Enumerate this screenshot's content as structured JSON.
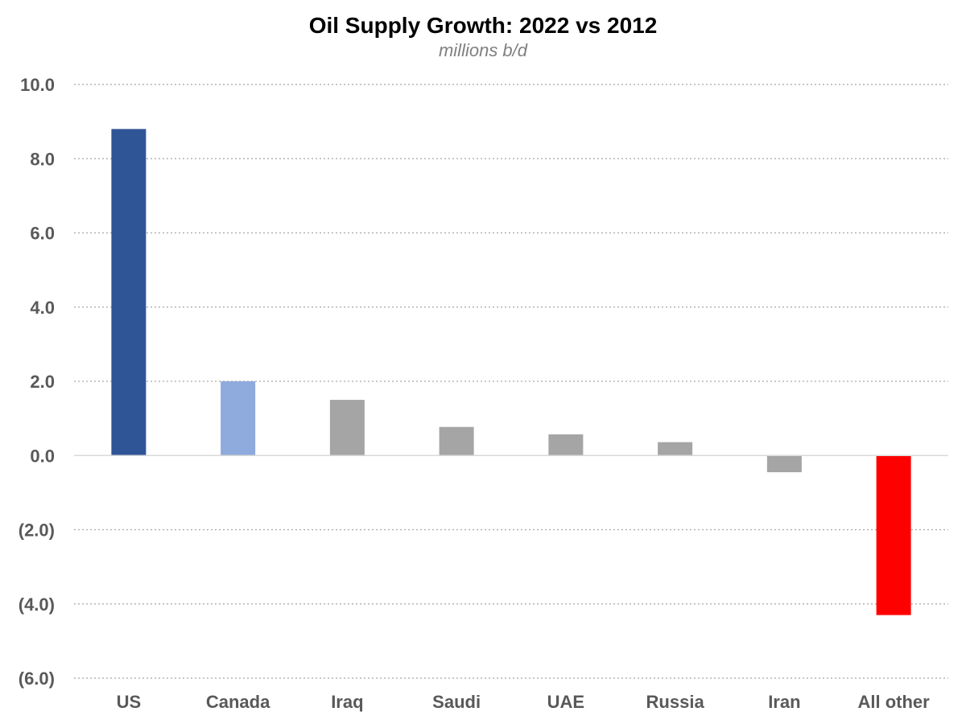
{
  "chart_data": {
    "type": "bar",
    "title": "Oil Supply Growth: 2022 vs 2012",
    "subtitle": "millions b/d",
    "xlabel": "",
    "ylabel": "",
    "categories": [
      "US",
      "Canada",
      "Iraq",
      "Saudi",
      "UAE",
      "Russia",
      "Iran",
      "All other"
    ],
    "values": [
      8.8,
      2.0,
      1.5,
      0.77,
      0.57,
      0.36,
      -0.45,
      -4.3
    ],
    "colors": [
      "#2f5597",
      "#8faadc",
      "#a5a5a5",
      "#a5a5a5",
      "#a5a5a5",
      "#a5a5a5",
      "#a5a5a5",
      "#ff0000"
    ],
    "ylim": [
      -6,
      10
    ],
    "yticks": [
      10,
      8,
      6,
      4,
      2,
      0,
      -2,
      -4,
      -6
    ],
    "ytick_labels": [
      "10.0",
      "8.0",
      "6.0",
      "4.0",
      "2.0",
      "0.0",
      "(2.0)",
      "(4.0)",
      "(6.0)"
    ],
    "grid": true,
    "grid_style": "dotted",
    "legend": "none"
  }
}
